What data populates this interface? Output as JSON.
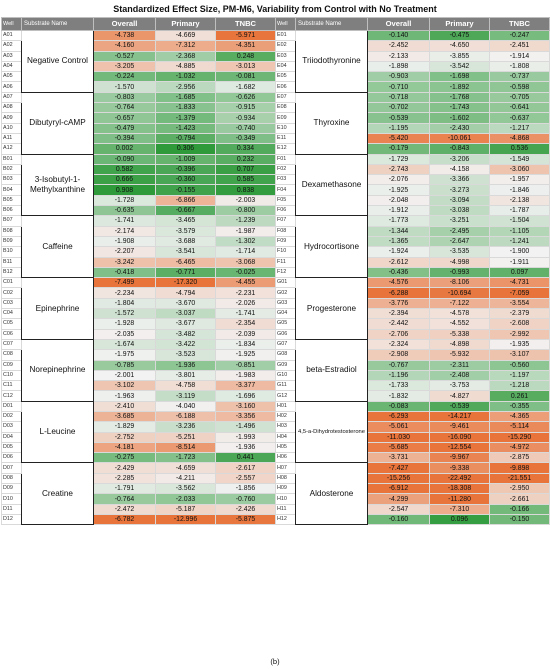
{
  "title": "Standardized Effect Size, PM-M6, Variability from Control with No Treatment",
  "caption": "(b)",
  "columns": [
    "Well",
    "Substrate Name",
    "Overall",
    "Primary",
    "TNBC"
  ],
  "colors": {
    "negative_strong": "#e8743b",
    "positive_strong": "#2e9a3a",
    "neutral": "#f2f2f2"
  },
  "left_groups": [
    {
      "name": "Negative Control",
      "rows": [
        [
          "A01",
          -4.738,
          -4.669,
          -5.971
        ],
        [
          "A02",
          -4.16,
          -7.312,
          -4.351
        ],
        [
          "A03",
          -0.527,
          -2.368,
          0.248
        ],
        [
          "A04",
          -3.205,
          -4.885,
          -3.013
        ],
        [
          "A05",
          -0.224,
          -1.032,
          -0.081
        ],
        [
          "A06",
          -1.57,
          -2.956,
          -1.682
        ]
      ]
    },
    {
      "name": "Dibutyryl-cAMP",
      "rows": [
        [
          "A07",
          -0.803,
          -1.685,
          -0.626
        ],
        [
          "A08",
          -0.764,
          -1.833,
          -0.915
        ],
        [
          "A09",
          -0.657,
          -1.379,
          -0.934
        ],
        [
          "A10",
          -0.479,
          -1.423,
          -0.74
        ],
        [
          "A11",
          -0.394,
          -0.794,
          -0.349
        ],
        [
          "A12",
          0.002,
          0.306,
          0.334
        ]
      ]
    },
    {
      "name": "3-Isobutyl-1-Methylxanthine",
      "rows": [
        [
          "B01",
          -0.09,
          -1.009,
          0.232
        ],
        [
          "B02",
          0.582,
          -0.396,
          0.707
        ],
        [
          "B03",
          0.666,
          -0.36,
          0.585
        ],
        [
          "B04",
          0.908,
          -0.155,
          0.838
        ],
        [
          "B05",
          -1.728,
          -6.866,
          -2.003
        ],
        [
          "B06",
          -0.635,
          -0.667,
          -0.8
        ]
      ]
    },
    {
      "name": "Caffeine",
      "rows": [
        [
          "B07",
          -1.741,
          -3.465,
          -1.239
        ],
        [
          "B08",
          -2.174,
          -3.579,
          -1.987
        ],
        [
          "B09",
          -1.908,
          -3.688,
          -1.302
        ],
        [
          "B10",
          -2.207,
          -3.541,
          -1.714
        ],
        [
          "B11",
          -3.242,
          -6.465,
          -3.068
        ],
        [
          "B12",
          -0.418,
          -0.771,
          -0.025
        ]
      ]
    },
    {
      "name": "Epinephrine",
      "rows": [
        [
          "C01",
          -7.499,
          -17.32,
          -4.455
        ],
        [
          "C02",
          -2.234,
          -4.794,
          -2.231
        ],
        [
          "C03",
          -1.804,
          -3.67,
          -2.026
        ],
        [
          "C04",
          -1.572,
          -3.037,
          -1.741
        ],
        [
          "C05",
          -1.928,
          -3.677,
          -2.354
        ],
        [
          "C06",
          -2.035,
          -3.482,
          -2.039
        ]
      ]
    },
    {
      "name": "Norepinephrine",
      "rows": [
        [
          "C07",
          -1.674,
          -3.422,
          -1.834
        ],
        [
          "C08",
          -1.975,
          -3.523,
          -1.925
        ],
        [
          "C09",
          -0.785,
          -1.936,
          -0.851
        ],
        [
          "C10",
          -2.001,
          -3.801,
          -1.983
        ],
        [
          "C11",
          -3.102,
          -4.758,
          -3.377
        ],
        [
          "C12",
          -1.963,
          -3.119,
          -1.696
        ]
      ]
    },
    {
      "name": "L-Leucine",
      "rows": [
        [
          "D01",
          -2.41,
          -4.04,
          -3.16
        ],
        [
          "D02",
          -3.685,
          -6.188,
          -3.356
        ],
        [
          "D03",
          -1.829,
          -3.236,
          -1.496
        ],
        [
          "D04",
          -2.752,
          -5.251,
          -1.993
        ],
        [
          "D05",
          -4.181,
          -8.514,
          -1.936
        ],
        [
          "D06",
          -0.275,
          -1.723,
          0.441
        ]
      ]
    },
    {
      "name": "Creatine",
      "rows": [
        [
          "D07",
          -2.429,
          -4.659,
          -2.617
        ],
        [
          "D08",
          -2.285,
          -4.211,
          -2.557
        ],
        [
          "D09",
          -1.791,
          -3.562,
          -1.856
        ],
        [
          "D10",
          -0.764,
          -2.033,
          -0.76
        ],
        [
          "D11",
          -2.472,
          -5.187,
          -2.426
        ],
        [
          "D12",
          -6.782,
          -12.996,
          -5.875
        ]
      ]
    }
  ],
  "right_groups": [
    {
      "name": "Triiodothyronine",
      "rows": [
        [
          "E01",
          -0.14,
          -0.475,
          -0.247
        ],
        [
          "E02",
          -2.452,
          -4.65,
          -2.451
        ],
        [
          "E03",
          -2.133,
          -3.855,
          -1.914
        ],
        [
          "E04",
          -1.898,
          -3.542,
          -1.808
        ],
        [
          "E05",
          -0.903,
          -1.698,
          -0.737
        ],
        [
          "E06",
          -0.71,
          -1.892,
          -0.598
        ]
      ]
    },
    {
      "name": "Thyroxine",
      "rows": [
        [
          "E07",
          -0.718,
          -1.768,
          -0.705
        ],
        [
          "E08",
          -0.702,
          -1.743,
          -0.641
        ],
        [
          "E09",
          -0.539,
          -1.602,
          -0.637
        ],
        [
          "E10",
          -1.195,
          -2.43,
          -1.217
        ],
        [
          "E11",
          -5.42,
          -10.061,
          -4.868
        ],
        [
          "E12",
          -0.179,
          -0.843,
          0.536
        ]
      ]
    },
    {
      "name": "Dexamethasone",
      "rows": [
        [
          "F01",
          -1.729,
          -3.206,
          -1.549
        ],
        [
          "F02",
          -2.743,
          -4.158,
          -3.06
        ],
        [
          "F03",
          -2.076,
          -3.366,
          -1.957
        ],
        [
          "F04",
          -1.925,
          -3.273,
          -1.846
        ],
        [
          "F05",
          -2.048,
          -3.094,
          -2.138
        ],
        [
          "F06",
          -1.912,
          -3.038,
          -1.787
        ]
      ]
    },
    {
      "name": "Hydrocortisone",
      "rows": [
        [
          "F07",
          -1.773,
          -3.251,
          -1.504
        ],
        [
          "F08",
          -1.344,
          -2.495,
          -1.105
        ],
        [
          "F09",
          -1.365,
          -2.647,
          -1.241
        ],
        [
          "F10",
          -1.924,
          -3.535,
          -1.9
        ],
        [
          "F11",
          -2.612,
          -4.998,
          -1.911
        ],
        [
          "F12",
          -0.436,
          -0.993,
          0.097
        ]
      ]
    },
    {
      "name": "Progesterone",
      "rows": [
        [
          "G01",
          -4.576,
          -8.106,
          -4.731
        ],
        [
          "G02",
          -6.288,
          -10.694,
          -7.059
        ],
        [
          "G03",
          -3.776,
          -7.122,
          -3.554
        ],
        [
          "G04",
          -2.394,
          -4.578,
          -2.379
        ],
        [
          "G05",
          -2.442,
          -4.552,
          -2.608
        ],
        [
          "G06",
          -2.706,
          -5.338,
          -2.992
        ]
      ]
    },
    {
      "name": "beta-Estradiol",
      "rows": [
        [
          "G07",
          -2.324,
          -4.898,
          -1.935
        ],
        [
          "G08",
          -2.908,
          -5.932,
          -3.107
        ],
        [
          "G09",
          -0.767,
          -2.311,
          -0.56
        ],
        [
          "G10",
          -1.196,
          -2.408,
          -1.197
        ],
        [
          "G11",
          -1.733,
          -3.753,
          -1.218
        ],
        [
          "G12",
          -1.832,
          -4.827,
          0.261
        ]
      ]
    },
    {
      "name": "4,5-a-Dihydrotestosterone",
      "small": true,
      "rows": [
        [
          "H01",
          -0.083,
          -0.539,
          -0.355
        ],
        [
          "H02",
          -6.293,
          -14.217,
          -4.365
        ],
        [
          "H03",
          -5.061,
          -9.461,
          -5.114
        ],
        [
          "H04",
          -11.03,
          -16.09,
          -15.29
        ],
        [
          "H05",
          -5.685,
          -12.554,
          -4.972
        ],
        [
          "H06",
          -3.731,
          -9.967,
          -2.875
        ]
      ]
    },
    {
      "name": "Aldosterone",
      "rows": [
        [
          "H07",
          -7.427,
          -9.338,
          -9.898
        ],
        [
          "H08",
          -15.256,
          -22.492,
          -21.551
        ],
        [
          "H09",
          -6.912,
          -18.308,
          -2.95
        ],
        [
          "H10",
          -4.299,
          -11.28,
          -2.661
        ],
        [
          "H11",
          -2.547,
          -7.31,
          -0.166
        ],
        [
          "H12",
          -0.16,
          0.096,
          -0.15
        ]
      ]
    }
  ]
}
